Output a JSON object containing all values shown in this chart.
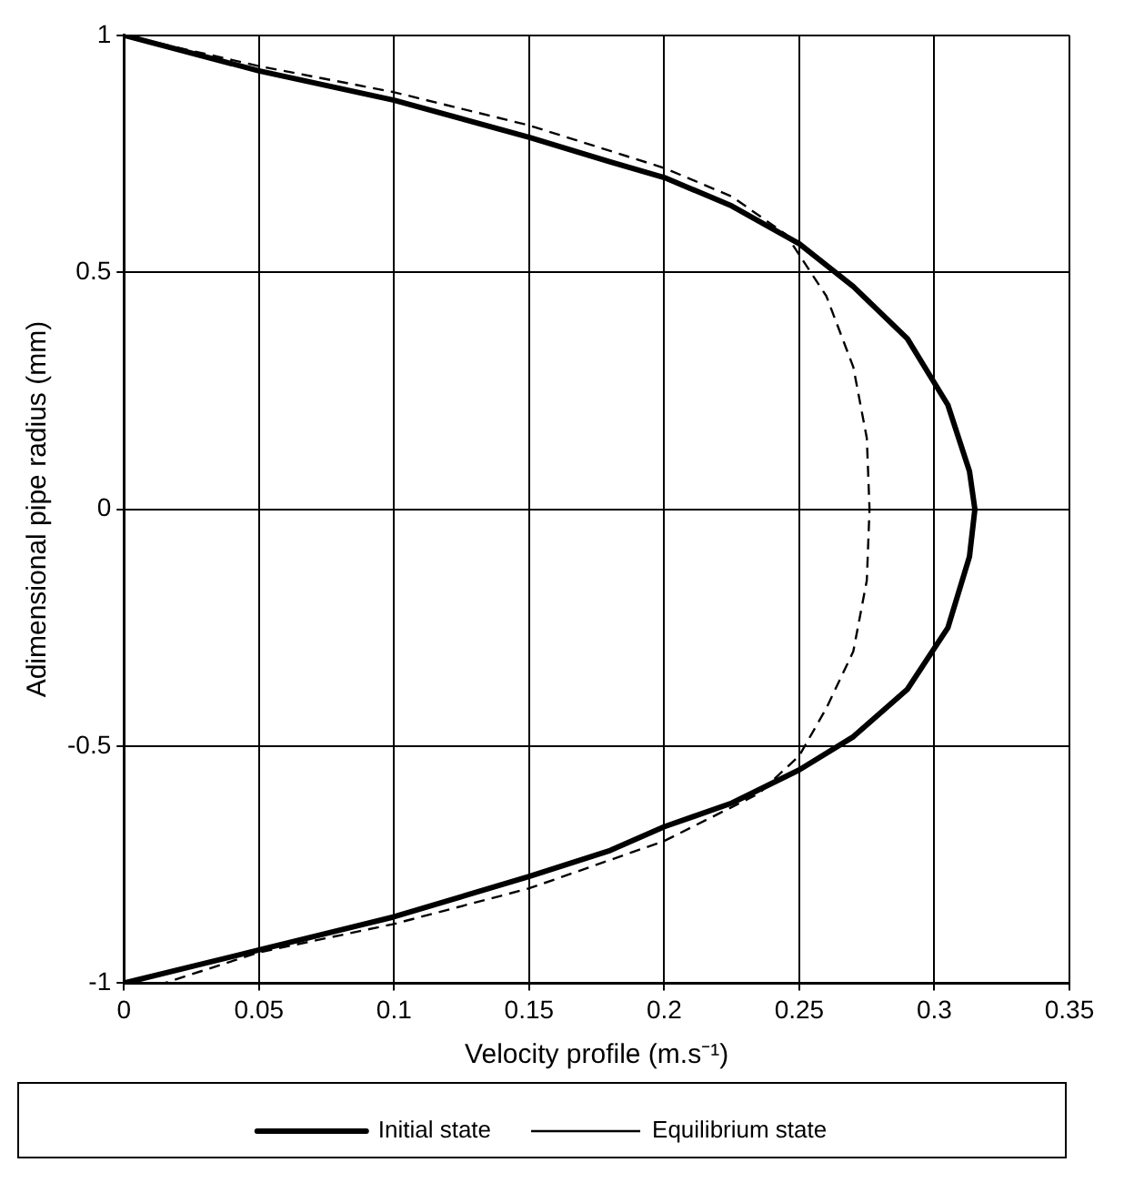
{
  "chart_data": {
    "type": "line",
    "xlabel": "Velocity profile (m.s⁻¹)",
    "ylabel": "Adimensional pipe radius (mm)",
    "xlim": [
      0,
      0.35
    ],
    "xticks": [
      0,
      0.05,
      0.1,
      0.15,
      0.2,
      0.25,
      0.3,
      0.35
    ],
    "ylim": [
      -1,
      1
    ],
    "yticks": [
      -1,
      -0.5,
      0,
      0.5,
      1
    ],
    "grid": true,
    "legend": "bottom",
    "marker": "none",
    "series": [
      {
        "name": "Initial state",
        "color": "#000000",
        "line_style": "solid",
        "x": [
          0,
          0.05,
          0.1,
          0.15,
          0.18,
          0.2,
          0.225,
          0.25,
          0.27,
          0.29,
          0.305,
          0.313,
          0.315,
          0.313,
          0.305,
          0.29,
          0.27,
          0.25,
          0.225,
          0.2,
          0.18,
          0.15,
          0.1,
          0.05,
          0
        ],
        "values": [
          1,
          0.925,
          0.863,
          0.785,
          0.733,
          0.7,
          0.64,
          0.56,
          0.47,
          0.36,
          0.22,
          0.08,
          0,
          -0.1,
          -0.25,
          -0.38,
          -0.48,
          -0.55,
          -0.62,
          -0.67,
          -0.72,
          -0.775,
          -0.86,
          -0.93,
          -1
        ]
      },
      {
        "name": "Equilibrium state",
        "color": "#000000",
        "line_style": "dashed",
        "x": [
          0,
          0.05,
          0.1,
          0.15,
          0.2,
          0.225,
          0.245,
          0.26,
          0.27,
          0.275,
          0.276,
          0.275,
          0.27,
          0.26,
          0.25,
          0.235,
          0.2,
          0.15,
          0.1,
          0.05,
          0.015
        ],
        "values": [
          1,
          0.935,
          0.88,
          0.81,
          0.72,
          0.66,
          0.58,
          0.45,
          0.3,
          0.15,
          0,
          -0.15,
          -0.3,
          -0.42,
          -0.52,
          -0.6,
          -0.7,
          -0.8,
          -0.875,
          -0.935,
          -1
        ]
      }
    ]
  }
}
